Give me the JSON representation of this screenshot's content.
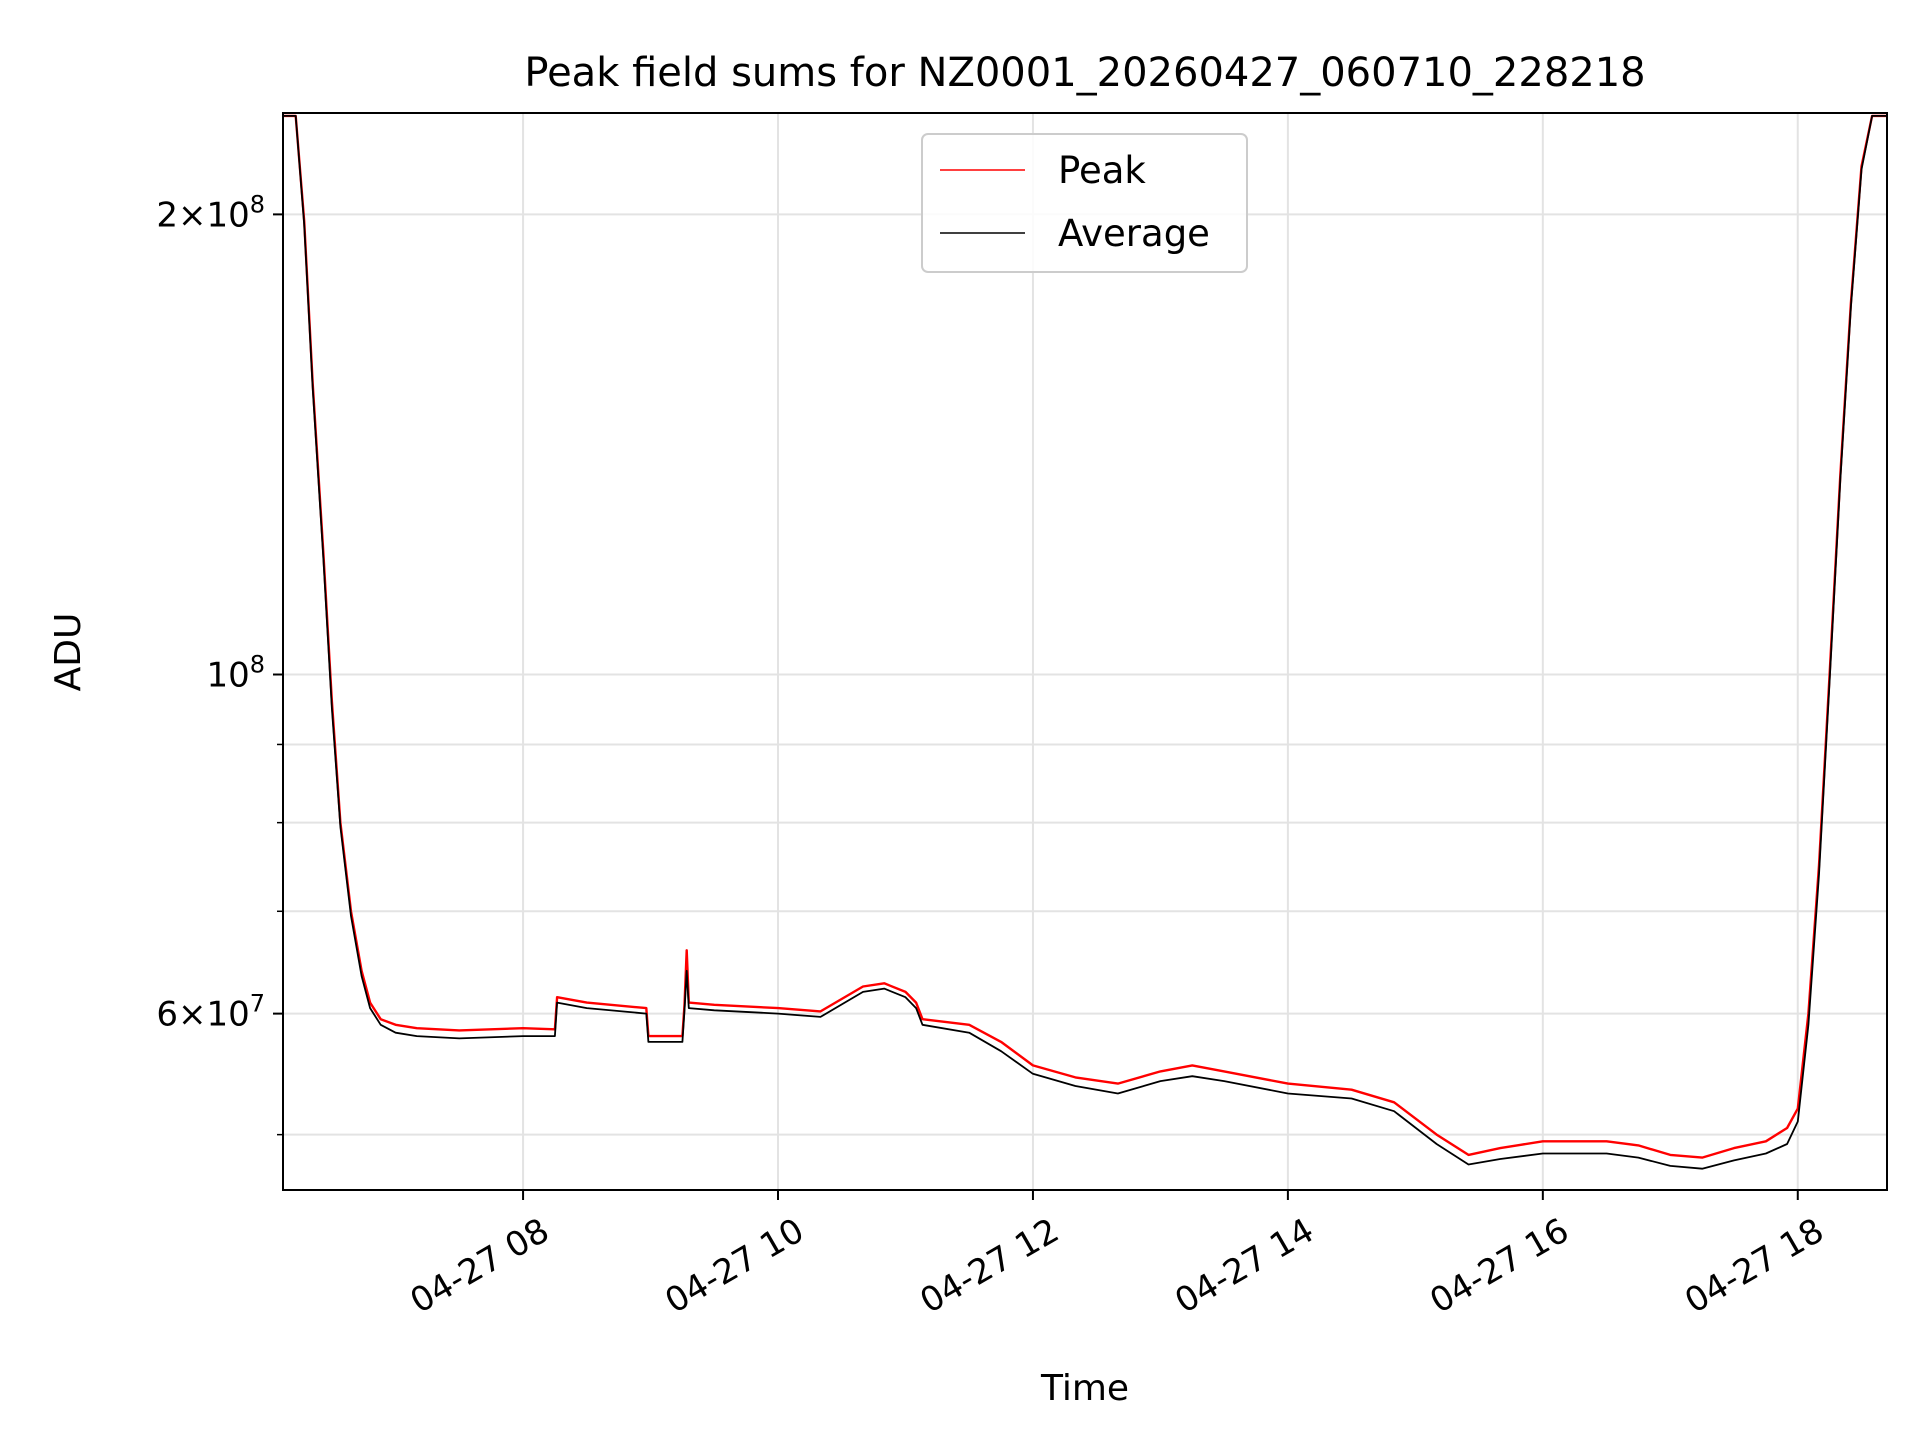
{
  "chart_data": {
    "type": "line",
    "title": "Peak field sums for NZ0001_20260427_060710_228218",
    "xlabel": "Time",
    "ylabel": "ADU",
    "yscale": "log",
    "ylim": [
      46000000,
      233000000
    ],
    "xlim": [
      "2026-04-27 06:07",
      "2026-04-27 18:42"
    ],
    "grid": true,
    "legend_position": "upper center",
    "x_ticks": [
      {
        "value": "2026-04-27 08:00",
        "label": "04-27 08"
      },
      {
        "value": "2026-04-27 10:00",
        "label": "04-27 10"
      },
      {
        "value": "2026-04-27 12:00",
        "label": "04-27 12"
      },
      {
        "value": "2026-04-27 14:00",
        "label": "04-27 14"
      },
      {
        "value": "2026-04-27 16:00",
        "label": "04-27 16"
      },
      {
        "value": "2026-04-27 18:00",
        "label": "04-27 18"
      }
    ],
    "y_major_ticks": [
      {
        "value": 60000000,
        "mantissa": "6",
        "exp": "7"
      },
      {
        "value": 100000000,
        "mantissa": "",
        "exp": "8"
      },
      {
        "value": 200000000,
        "mantissa": "2",
        "exp": "8"
      }
    ],
    "y_minor_ticks": [
      50000000,
      70000000,
      80000000,
      90000000
    ],
    "series": [
      {
        "name": "Peak",
        "color": "#ff0000",
        "x": [
          "2026-04-27 06:07",
          "2026-04-27 06:13",
          "2026-04-27 06:17",
          "2026-04-27 06:21",
          "2026-04-27 06:26",
          "2026-04-27 06:30",
          "2026-04-27 06:34",
          "2026-04-27 06:39",
          "2026-04-27 06:44",
          "2026-04-27 06:48",
          "2026-04-27 06:53",
          "2026-04-27 07:00",
          "2026-04-27 07:10",
          "2026-04-27 07:30",
          "2026-04-27 08:00",
          "2026-04-27 08:15",
          "2026-04-27 08:16",
          "2026-04-27 08:30",
          "2026-04-27 08:58",
          "2026-04-27 08:59",
          "2026-04-27 09:15",
          "2026-04-27 09:16",
          "2026-04-27 09:17",
          "2026-04-27 09:18",
          "2026-04-27 09:30",
          "2026-04-27 10:00",
          "2026-04-27 10:20",
          "2026-04-27 10:40",
          "2026-04-27 10:50",
          "2026-04-27 11:00",
          "2026-04-27 11:05",
          "2026-04-27 11:08",
          "2026-04-27 11:30",
          "2026-04-27 11:45",
          "2026-04-27 12:00",
          "2026-04-27 12:20",
          "2026-04-27 12:40",
          "2026-04-27 13:00",
          "2026-04-27 13:15",
          "2026-04-27 13:30",
          "2026-04-27 14:00",
          "2026-04-27 14:30",
          "2026-04-27 14:50",
          "2026-04-27 15:10",
          "2026-04-27 15:25",
          "2026-04-27 15:40",
          "2026-04-27 16:00",
          "2026-04-27 16:30",
          "2026-04-27 16:45",
          "2026-04-27 17:00",
          "2026-04-27 17:15",
          "2026-04-27 17:30",
          "2026-04-27 17:45",
          "2026-04-27 17:55",
          "2026-04-27 18:00",
          "2026-04-27 18:05",
          "2026-04-27 18:10",
          "2026-04-27 18:15",
          "2026-04-27 18:20",
          "2026-04-27 18:25",
          "2026-04-27 18:30",
          "2026-04-27 18:35",
          "2026-04-27 18:42"
        ],
        "y": [
          232000000,
          232000000,
          198000000,
          155000000,
          120000000,
          96000000,
          80000000,
          70000000,
          64000000,
          61000000,
          59500000,
          59000000,
          58700000,
          58500000,
          58700000,
          58600000,
          61500000,
          61000000,
          60500000,
          58000000,
          58000000,
          60800000,
          66000000,
          61000000,
          60800000,
          60500000,
          60200000,
          62500000,
          62800000,
          62000000,
          61000000,
          59500000,
          59000000,
          57500000,
          55500000,
          54500000,
          54000000,
          55000000,
          55500000,
          55000000,
          54000000,
          53500000,
          52500000,
          50000000,
          48500000,
          49000000,
          49500000,
          49500000,
          49200000,
          48500000,
          48300000,
          49000000,
          49500000,
          50500000,
          52000000,
          60000000,
          75000000,
          100000000,
          135000000,
          175000000,
          215000000,
          232000000,
          232000000
        ]
      },
      {
        "name": "Average",
        "color": "#000000",
        "x": [
          "2026-04-27 06:07",
          "2026-04-27 06:13",
          "2026-04-27 06:17",
          "2026-04-27 06:21",
          "2026-04-27 06:26",
          "2026-04-27 06:30",
          "2026-04-27 06:34",
          "2026-04-27 06:39",
          "2026-04-27 06:44",
          "2026-04-27 06:48",
          "2026-04-27 06:53",
          "2026-04-27 07:00",
          "2026-04-27 07:10",
          "2026-04-27 07:30",
          "2026-04-27 08:00",
          "2026-04-27 08:15",
          "2026-04-27 08:16",
          "2026-04-27 08:30",
          "2026-04-27 08:58",
          "2026-04-27 08:59",
          "2026-04-27 09:15",
          "2026-04-27 09:16",
          "2026-04-27 09:17",
          "2026-04-27 09:18",
          "2026-04-27 09:30",
          "2026-04-27 10:00",
          "2026-04-27 10:20",
          "2026-04-27 10:40",
          "2026-04-27 10:50",
          "2026-04-27 11:00",
          "2026-04-27 11:05",
          "2026-04-27 11:08",
          "2026-04-27 11:30",
          "2026-04-27 11:45",
          "2026-04-27 12:00",
          "2026-04-27 12:20",
          "2026-04-27 12:40",
          "2026-04-27 13:00",
          "2026-04-27 13:15",
          "2026-04-27 13:30",
          "2026-04-27 14:00",
          "2026-04-27 14:30",
          "2026-04-27 14:50",
          "2026-04-27 15:10",
          "2026-04-27 15:25",
          "2026-04-27 15:40",
          "2026-04-27 16:00",
          "2026-04-27 16:30",
          "2026-04-27 16:45",
          "2026-04-27 17:00",
          "2026-04-27 17:15",
          "2026-04-27 17:30",
          "2026-04-27 17:45",
          "2026-04-27 17:55",
          "2026-04-27 18:00",
          "2026-04-27 18:05",
          "2026-04-27 18:10",
          "2026-04-27 18:15",
          "2026-04-27 18:20",
          "2026-04-27 18:25",
          "2026-04-27 18:30",
          "2026-04-27 18:35",
          "2026-04-27 18:42"
        ],
        "y": [
          232000000,
          232000000,
          197000000,
          154000000,
          119000000,
          95000000,
          79500000,
          69500000,
          63500000,
          60500000,
          59000000,
          58300000,
          58000000,
          57800000,
          58000000,
          58000000,
          61000000,
          60500000,
          60000000,
          57500000,
          57500000,
          60300000,
          64000000,
          60500000,
          60300000,
          60000000,
          59700000,
          62000000,
          62300000,
          61500000,
          60500000,
          59000000,
          58300000,
          56700000,
          54800000,
          53800000,
          53200000,
          54200000,
          54600000,
          54200000,
          53200000,
          52800000,
          51800000,
          49300000,
          47800000,
          48200000,
          48600000,
          48600000,
          48300000,
          47700000,
          47500000,
          48100000,
          48600000,
          49300000,
          51000000,
          59000000,
          74000000,
          99000000,
          134000000,
          174000000,
          214000000,
          232000000,
          232000000
        ]
      }
    ]
  }
}
